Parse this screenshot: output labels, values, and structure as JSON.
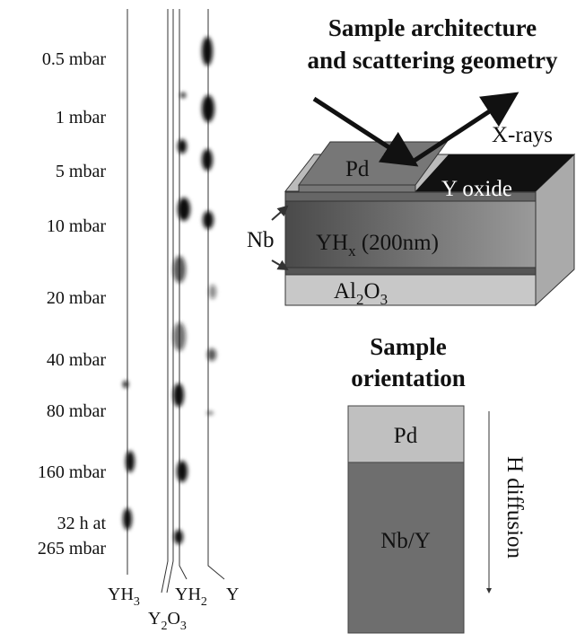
{
  "pressures": [
    "0.5 mbar",
    "1 mbar",
    "5 mbar",
    "10 mbar",
    "20 mbar",
    "40 mbar",
    "80 mbar",
    "160 mbar",
    "32 h at",
    "265 mbar"
  ],
  "phases": {
    "yh3": [
      "YH",
      "3"
    ],
    "y2o3": [
      "Y",
      "2",
      "O",
      "3"
    ],
    "yh2": [
      "YH",
      "2"
    ],
    "y": "Y"
  },
  "architecture": {
    "title": [
      "Sample architecture",
      "and scattering geometry"
    ],
    "xrays": "X-rays",
    "pd": "Pd",
    "oxide": "Y oxide",
    "nb": "Nb",
    "yhx": [
      "YH",
      "x",
      " (200nm)"
    ],
    "substrate": [
      "Al",
      "2",
      "O",
      "3"
    ]
  },
  "orientation": {
    "title": [
      "Sample",
      "orientation"
    ],
    "pd": "Pd",
    "bulk": "Nb/Y",
    "diffusion": "H diffusion"
  }
}
